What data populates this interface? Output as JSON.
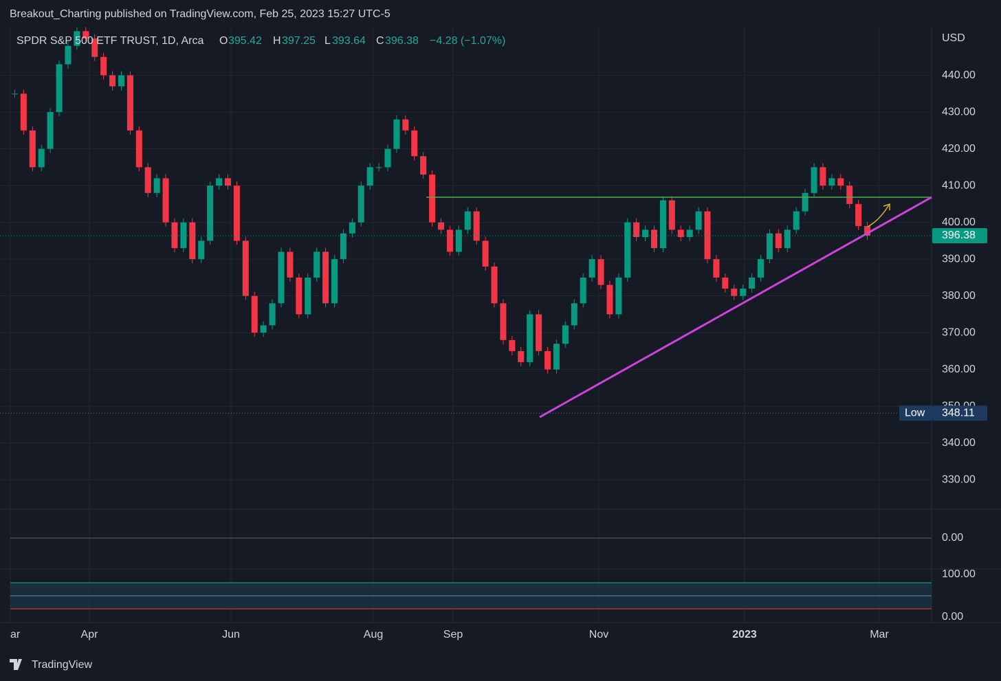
{
  "header": {
    "title": "Breakout_Charting published on TradingView.com, Feb 25, 2023 15:27 UTC-5"
  },
  "legend": {
    "symbol": "SPDR S&P 500 ETF TRUST, 1D, Arca",
    "open_label": "O",
    "open": "395.42",
    "high_label": "H",
    "high": "397.25",
    "low_label": "L",
    "low": "393.64",
    "close_label": "C",
    "close": "396.38",
    "change": "−4.28 (−1.07%)"
  },
  "currency": "USD",
  "chart_data": {
    "type": "candlestick",
    "closes": [
      435,
      425,
      415,
      420,
      430,
      443,
      448,
      452,
      450,
      445,
      440,
      437,
      440,
      425,
      415,
      408,
      412,
      400,
      393,
      400,
      390,
      395,
      410,
      412,
      410,
      395,
      380,
      370,
      372,
      378,
      392,
      385,
      375,
      385,
      392,
      378,
      390,
      397,
      400,
      410,
      415,
      415,
      420,
      428,
      425,
      418,
      413,
      400,
      398,
      392,
      398,
      403,
      395,
      388,
      378,
      368,
      365,
      362,
      375,
      365,
      360,
      367,
      372,
      378,
      385,
      390,
      383,
      375,
      385,
      400,
      396,
      398,
      393,
      406,
      398,
      396,
      398,
      403,
      390,
      385,
      382,
      380,
      382,
      385,
      390,
      397,
      393,
      398,
      403,
      408,
      415,
      410,
      412,
      410,
      405,
      399,
      396.38
    ],
    "up_color": "#089981",
    "down_color": "#f23645",
    "ylim": [
      322,
      453
    ],
    "yticks": [
      {
        "value": 330,
        "label": "330.00"
      },
      {
        "value": 340,
        "label": "340.00"
      },
      {
        "value": 350,
        "label": "350.00"
      },
      {
        "value": 360,
        "label": "360.00"
      },
      {
        "value": 370,
        "label": "370.00"
      },
      {
        "value": 380,
        "label": "380.00"
      },
      {
        "value": 390,
        "label": "390.00"
      },
      {
        "value": 400,
        "label": "400.00"
      },
      {
        "value": 410,
        "label": "410.00"
      },
      {
        "value": 420,
        "label": "420.00"
      },
      {
        "value": 430,
        "label": "430.00"
      },
      {
        "value": 440,
        "label": "440.00"
      }
    ],
    "grid": true,
    "last_price": {
      "value": 396.38,
      "label": "396.38"
    },
    "low_marker": {
      "name": "Low",
      "value": 348.11,
      "label": "348.11"
    },
    "time_labels": [
      "ar",
      "Apr",
      "Jun",
      "Aug",
      "Sep",
      "Nov",
      "2023",
      "Mar"
    ]
  },
  "macd_pane": {
    "zero_label": "0.00"
  },
  "stoch_pane": {
    "top_label": "100.00",
    "bottom_label": "0.00"
  },
  "footer": {
    "brand": "TradingView"
  }
}
